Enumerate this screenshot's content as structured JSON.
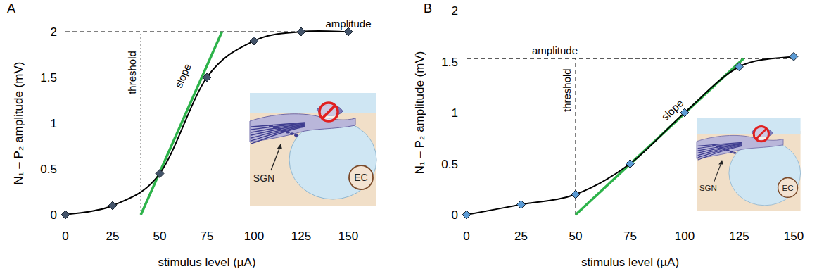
{
  "chart_data": [
    {
      "type": "line",
      "panel": "A",
      "x_label": "stimulus level (µA)",
      "y_label": "N₁ – P₂ amplitude (mV)",
      "x": [
        0,
        25,
        50,
        75,
        100,
        125,
        150
      ],
      "series": [
        {
          "values": [
            0,
            0.1,
            0.45,
            1.5,
            1.9,
            2,
            2
          ],
          "color": "#44546a",
          "marker": "diamond",
          "line_style": "solid"
        }
      ],
      "xlim": [
        0,
        150
      ],
      "xticks": [
        0,
        25,
        50,
        75,
        100,
        125,
        150
      ],
      "ylim": [
        0,
        2
      ],
      "yticks": [
        0,
        0.5,
        1,
        1.5,
        2
      ],
      "grid": false,
      "threshold": {
        "label": "threshold",
        "x": 40,
        "line_style": "dotted"
      },
      "amplitude": {
        "label": "amplitude",
        "y": 2,
        "line_style": "dashed"
      },
      "slope": {
        "label": "slope",
        "x": [
          40,
          83
        ],
        "y": [
          0,
          2
        ],
        "color": "#2db34a"
      },
      "inset": {
        "labels": [
          "SGN",
          "EC"
        ]
      }
    },
    {
      "type": "line",
      "panel": "B",
      "x_label": "stimulus level (µA)",
      "y_label": "N₁ – P₂ amplitude (mV)",
      "x": [
        0,
        25,
        50,
        75,
        100,
        125,
        150
      ],
      "series": [
        {
          "values": [
            0,
            0.1,
            0.2,
            0.5,
            1,
            1.45,
            1.55
          ],
          "color": "#5b9bd5",
          "marker": "diamond",
          "line_style": "solid"
        }
      ],
      "xlim": [
        0,
        150
      ],
      "xticks": [
        0,
        25,
        50,
        75,
        100,
        125,
        150
      ],
      "ylim": [
        0,
        2
      ],
      "yticks": [
        0,
        0.5,
        1,
        1.5,
        2
      ],
      "grid": false,
      "threshold": {
        "label": "threshold",
        "x": 50,
        "line_style": "dashed"
      },
      "amplitude": {
        "label": "amplitude",
        "y": 1.53,
        "line_style": "dashed"
      },
      "slope": {
        "label": "slope",
        "x": [
          50,
          127
        ],
        "y": [
          0,
          1.53
        ],
        "color": "#2db34a"
      },
      "inset": {
        "labels": [
          "SGN",
          "EC"
        ]
      }
    }
  ]
}
